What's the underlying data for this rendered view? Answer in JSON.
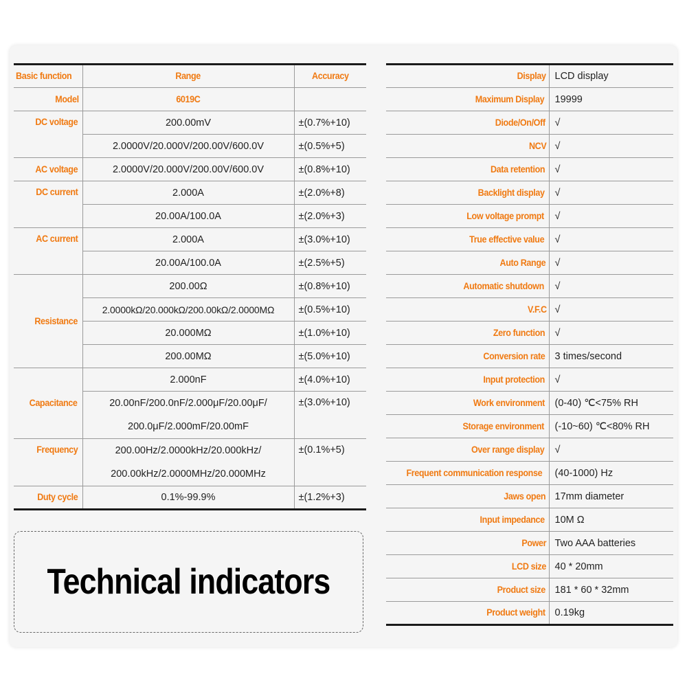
{
  "title": "Technical indicators",
  "spec_table": {
    "headers": {
      "function": "Basic function",
      "range": "Range",
      "accuracy": "Accuracy"
    },
    "model": {
      "label": "Model",
      "value": "6019C"
    },
    "dc_voltage": {
      "label": "DC voltage",
      "rows": [
        {
          "range": "200.00mV",
          "accuracy": "±(0.7%+10)"
        },
        {
          "range": "2.0000V/20.000V/200.00V/600.0V",
          "accuracy": "±(0.5%+5)"
        }
      ]
    },
    "ac_voltage": {
      "label": "AC voltage",
      "rows": [
        {
          "range": "2.0000V/20.000V/200.00V/600.0V",
          "accuracy": "±(0.8%+10)"
        }
      ]
    },
    "dc_current": {
      "label": "DC current",
      "rows": [
        {
          "range": "2.000A",
          "accuracy": "±(2.0%+8)"
        },
        {
          "range": "20.00A/100.0A",
          "accuracy": "±(2.0%+3)"
        }
      ]
    },
    "ac_current": {
      "label": "AC current",
      "rows": [
        {
          "range": "2.000A",
          "accuracy": "±(3.0%+10)"
        },
        {
          "range": "20.00A/100.0A",
          "accuracy": "±(2.5%+5)"
        }
      ]
    },
    "resistance": {
      "label": "Resistance",
      "rows": [
        {
          "range": "200.00Ω",
          "accuracy": "±(0.8%+10)"
        },
        {
          "range": "2.0000kΩ/20.000kΩ/200.00kΩ/2.0000MΩ",
          "accuracy": "±(0.5%+10)"
        },
        {
          "range": "20.000MΩ",
          "accuracy": "±(1.0%+10)"
        },
        {
          "range": "200.00MΩ",
          "accuracy": "±(5.0%+10)"
        }
      ]
    },
    "capacitance": {
      "label": "Capacitance",
      "rows": [
        {
          "range": "2.000nF",
          "accuracy": "±(4.0%+10)"
        },
        {
          "range_line1": "20.00nF/200.0nF/2.000μF/20.00μF/",
          "range_line2": "200.0μF/2.000mF/20.00mF",
          "accuracy": "±(3.0%+10)"
        }
      ]
    },
    "frequency": {
      "label": "Frequency",
      "range_line1": "200.00Hz/2.0000kHz/20.000kHz/",
      "range_line2": "200.00kHz/2.0000MHz/20.000MHz",
      "accuracy": "±(0.1%+5)"
    },
    "duty_cycle": {
      "label": "Duty cycle",
      "range": "0.1%-99.9%",
      "accuracy": "±(1.2%+3)"
    }
  },
  "features": [
    {
      "label": "Display",
      "value": "LCD display"
    },
    {
      "label": "Maximum Display",
      "value": "19999"
    },
    {
      "label": "Diode/On/Off",
      "value": "√"
    },
    {
      "label": "NCV",
      "value": "√"
    },
    {
      "label": "Data retention",
      "value": "√"
    },
    {
      "label": "Backlight display",
      "value": "√"
    },
    {
      "label": "Low voltage prompt",
      "value": "√"
    },
    {
      "label": "True effective value",
      "value": "√"
    },
    {
      "label": "Auto Range",
      "value": "√"
    },
    {
      "label": "Automatic shutdown",
      "value": "√"
    },
    {
      "label": "V.F.C",
      "value": "√"
    },
    {
      "label": "Zero function",
      "value": "√"
    },
    {
      "label": "Conversion rate",
      "value": "3 times/second"
    },
    {
      "label": "Input protection",
      "value": "√"
    },
    {
      "label": "Work environment",
      "value": "(0-40) ℃<75% RH"
    },
    {
      "label": "Storage environment",
      "value": "(-10~60) ℃<80% RH"
    },
    {
      "label": "Over range display",
      "value": "√"
    },
    {
      "label": "Frequent communication response",
      "value": "(40-1000) Hz"
    },
    {
      "label": "Jaws open",
      "value": "17mm diameter"
    },
    {
      "label": "Input impedance",
      "value": "10M Ω"
    },
    {
      "label": "Power",
      "value": "Two AAA batteries"
    },
    {
      "label": "LCD size",
      "value": "40 * 20mm"
    },
    {
      "label": "Product size",
      "value": "181 * 60 * 32mm"
    },
    {
      "label": "Product weight",
      "value": "0.19kg"
    }
  ],
  "colors": {
    "accent": "#f07a12",
    "panel": "#f5f5f5",
    "rule": "#1a1a1a"
  }
}
